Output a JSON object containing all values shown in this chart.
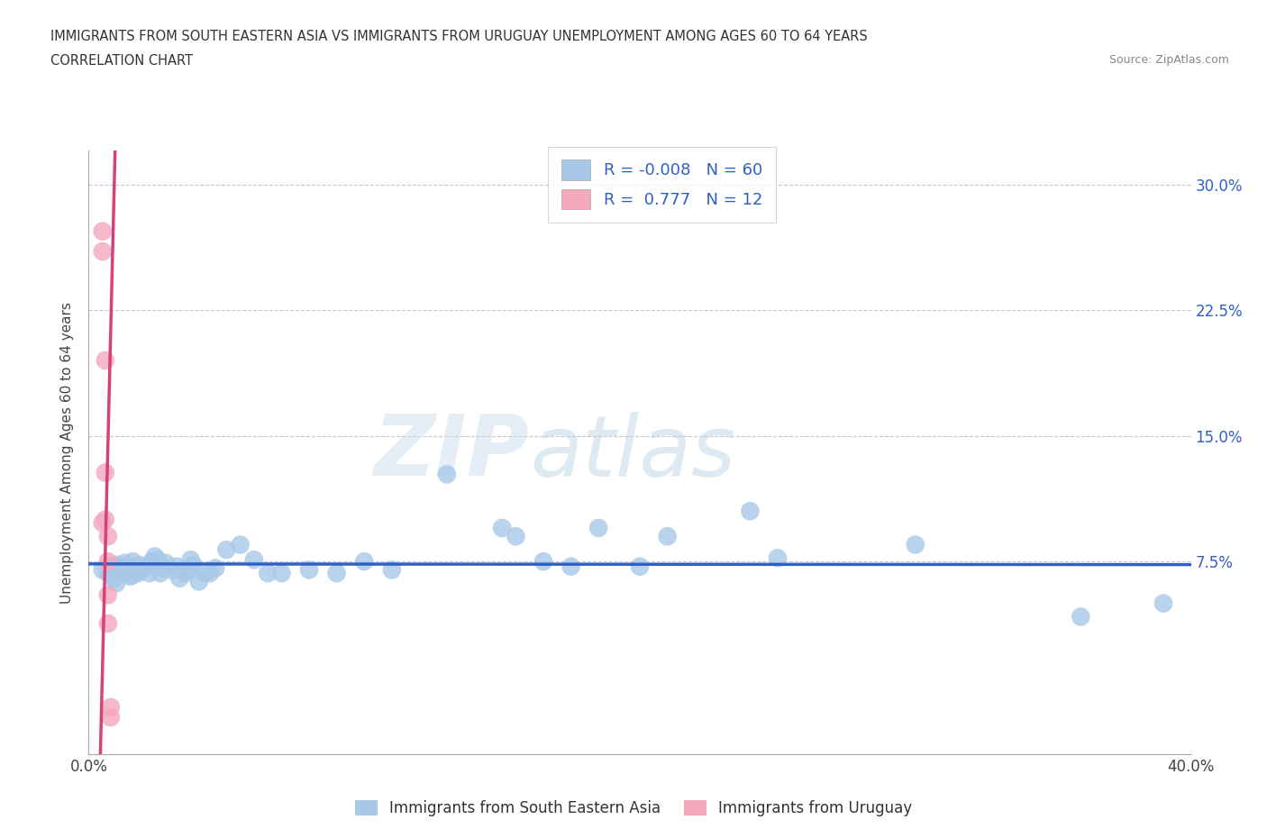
{
  "title_line1": "IMMIGRANTS FROM SOUTH EASTERN ASIA VS IMMIGRANTS FROM URUGUAY UNEMPLOYMENT AMONG AGES 60 TO 64 YEARS",
  "title_line2": "CORRELATION CHART",
  "source_text": "Source: ZipAtlas.com",
  "ylabel": "Unemployment Among Ages 60 to 64 years",
  "xlim": [
    0.0,
    0.4
  ],
  "ylim": [
    -0.04,
    0.32
  ],
  "r_blue": -0.008,
  "n_blue": 60,
  "r_pink": 0.777,
  "n_pink": 12,
  "blue_color": "#A8C8E8",
  "pink_color": "#F4A8BC",
  "blue_line_color": "#3060C0",
  "pink_line_color": "#D8407A",
  "watermark_zip": "ZIP",
  "watermark_atlas": "atlas",
  "blue_scatter_x": [
    0.005,
    0.007,
    0.008,
    0.009,
    0.01,
    0.01,
    0.01,
    0.012,
    0.012,
    0.013,
    0.014,
    0.015,
    0.015,
    0.016,
    0.016,
    0.017,
    0.018,
    0.018,
    0.019,
    0.02,
    0.022,
    0.023,
    0.024,
    0.025,
    0.026,
    0.027,
    0.028,
    0.03,
    0.032,
    0.033,
    0.035,
    0.036,
    0.037,
    0.038,
    0.04,
    0.042,
    0.044,
    0.046,
    0.05,
    0.055,
    0.06,
    0.065,
    0.07,
    0.08,
    0.09,
    0.1,
    0.11,
    0.13,
    0.15,
    0.155,
    0.165,
    0.175,
    0.185,
    0.2,
    0.21,
    0.24,
    0.25,
    0.3,
    0.36,
    0.39
  ],
  "blue_scatter_y": [
    0.07,
    0.068,
    0.072,
    0.065,
    0.071,
    0.073,
    0.062,
    0.068,
    0.072,
    0.074,
    0.07,
    0.066,
    0.069,
    0.067,
    0.075,
    0.071,
    0.068,
    0.073,
    0.07,
    0.072,
    0.068,
    0.075,
    0.078,
    0.076,
    0.068,
    0.071,
    0.074,
    0.07,
    0.072,
    0.065,
    0.068,
    0.07,
    0.076,
    0.073,
    0.063,
    0.068,
    0.068,
    0.071,
    0.082,
    0.085,
    0.076,
    0.068,
    0.068,
    0.07,
    0.068,
    0.075,
    0.07,
    0.127,
    0.095,
    0.09,
    0.075,
    0.072,
    0.095,
    0.072,
    0.09,
    0.105,
    0.077,
    0.085,
    0.042,
    0.05
  ],
  "pink_scatter_x": [
    0.005,
    0.005,
    0.005,
    0.006,
    0.006,
    0.006,
    0.007,
    0.007,
    0.007,
    0.007,
    0.008,
    0.008
  ],
  "pink_scatter_y": [
    0.272,
    0.26,
    0.098,
    0.195,
    0.128,
    0.1,
    0.09,
    0.075,
    0.055,
    0.038,
    -0.012,
    -0.018
  ],
  "blue_hline_y": 0.0705,
  "ytick_vals": [
    0.075,
    0.15,
    0.225,
    0.3
  ],
  "ytick_labels": [
    "7.5%",
    "15.0%",
    "22.5%",
    "30.0%"
  ],
  "xtick_vals": [
    0.0,
    0.1,
    0.2,
    0.3,
    0.4
  ],
  "xtick_labels": [
    "0.0%",
    "",
    "",
    "",
    "40.0%"
  ]
}
